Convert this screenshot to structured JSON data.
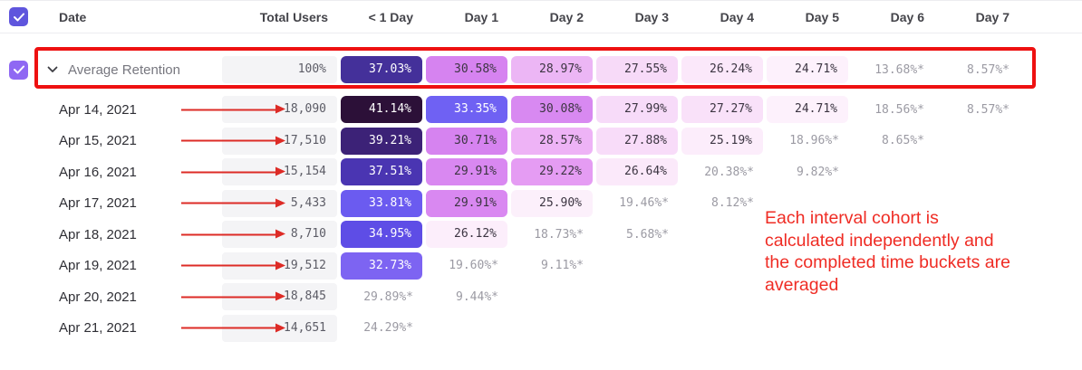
{
  "table": {
    "columns": {
      "date": "Date",
      "total": "Total Users",
      "days": [
        "< 1 Day",
        "Day 1",
        "Day 2",
        "Day 3",
        "Day 4",
        "Day 5",
        "Day 6",
        "Day 7"
      ]
    },
    "rows": [
      {
        "label": "Average Retention",
        "type": "average",
        "checked": true,
        "total": "100%",
        "cells": [
          {
            "text": "37.03%",
            "bg": "#44309a",
            "fg": "#ffffff"
          },
          {
            "text": "30.58%",
            "bg": "#d683f0",
            "fg": "#3c3542"
          },
          {
            "text": "28.97%",
            "bg": "#ecb6f5",
            "fg": "#3c3542"
          },
          {
            "text": "27.55%",
            "bg": "#f7daf8",
            "fg": "#3c3542"
          },
          {
            "text": "26.24%",
            "bg": "#fbe8fa",
            "fg": "#3c3542"
          },
          {
            "text": "24.71%",
            "bg": "#fdf1fc",
            "fg": "#3c3542"
          },
          {
            "text": "13.68%*",
            "bg": null,
            "fg": "#9b9aa3"
          },
          {
            "text": "8.57%*",
            "bg": null,
            "fg": "#9b9aa3"
          }
        ]
      },
      {
        "label": "Apr 14, 2021",
        "type": "date",
        "total": "18,090",
        "cells": [
          {
            "text": "41.14%",
            "bg": "#2c1038",
            "fg": "#ffffff"
          },
          {
            "text": "33.35%",
            "bg": "#6f61f3",
            "fg": "#ffffff"
          },
          {
            "text": "30.08%",
            "bg": "#d889f1",
            "fg": "#3c3542"
          },
          {
            "text": "27.99%",
            "bg": "#f7dbf9",
            "fg": "#3c3542"
          },
          {
            "text": "27.27%",
            "bg": "#f9e1f9",
            "fg": "#3c3542"
          },
          {
            "text": "24.71%",
            "bg": "#fdf1fc",
            "fg": "#3c3542"
          },
          {
            "text": "18.56%*",
            "bg": null,
            "fg": "#9b9aa3"
          },
          {
            "text": "8.57%*",
            "bg": null,
            "fg": "#9b9aa3"
          }
        ]
      },
      {
        "label": "Apr 15, 2021",
        "type": "date",
        "total": "17,510",
        "cells": [
          {
            "text": "39.21%",
            "bg": "#3c2277",
            "fg": "#ffffff"
          },
          {
            "text": "30.71%",
            "bg": "#d683f0",
            "fg": "#3c3542"
          },
          {
            "text": "28.57%",
            "bg": "#eeb3f6",
            "fg": "#3c3542"
          },
          {
            "text": "27.88%",
            "bg": "#f8dcf9",
            "fg": "#3c3542"
          },
          {
            "text": "25.19%",
            "bg": "#fcedfb",
            "fg": "#3c3542"
          },
          {
            "text": "18.96%*",
            "bg": null,
            "fg": "#9b9aa3"
          },
          {
            "text": "8.65%*",
            "bg": null,
            "fg": "#9b9aa3"
          },
          null
        ]
      },
      {
        "label": "Apr 16, 2021",
        "type": "date",
        "total": "15,154",
        "cells": [
          {
            "text": "37.51%",
            "bg": "#4a35b2",
            "fg": "#ffffff"
          },
          {
            "text": "29.91%",
            "bg": "#d988f1",
            "fg": "#3c3542"
          },
          {
            "text": "29.22%",
            "bg": "#e59cf3",
            "fg": "#3c3542"
          },
          {
            "text": "26.64%",
            "bg": "#fbe9fa",
            "fg": "#3c3542"
          },
          {
            "text": "20.38%*",
            "bg": null,
            "fg": "#9b9aa3"
          },
          {
            "text": "9.82%*",
            "bg": null,
            "fg": "#9b9aa3"
          },
          null,
          null
        ]
      },
      {
        "label": "Apr 17, 2021",
        "type": "date",
        "total": "5,433",
        "cells": [
          {
            "text": "33.81%",
            "bg": "#6b5bf0",
            "fg": "#ffffff"
          },
          {
            "text": "29.91%",
            "bg": "#d988f1",
            "fg": "#3c3542"
          },
          {
            "text": "25.90%",
            "bg": "#fcf0fb",
            "fg": "#3c3542"
          },
          {
            "text": "19.46%*",
            "bg": null,
            "fg": "#9b9aa3"
          },
          {
            "text": "8.12%*",
            "bg": null,
            "fg": "#9b9aa3"
          },
          null,
          null,
          null
        ]
      },
      {
        "label": "Apr 18, 2021",
        "type": "date",
        "total": "8,710",
        "cells": [
          {
            "text": "34.95%",
            "bg": "#5e4de6",
            "fg": "#ffffff"
          },
          {
            "text": "26.12%",
            "bg": "#fceefb",
            "fg": "#3c3542"
          },
          {
            "text": "18.73%*",
            "bg": null,
            "fg": "#9b9aa3"
          },
          {
            "text": "5.68%*",
            "bg": null,
            "fg": "#9b9aa3"
          },
          null,
          null,
          null,
          null
        ]
      },
      {
        "label": "Apr 19, 2021",
        "type": "date",
        "total": "19,512",
        "cells": [
          {
            "text": "32.73%",
            "bg": "#7d64f2",
            "fg": "#ffffff"
          },
          {
            "text": "19.60%*",
            "bg": null,
            "fg": "#9b9aa3"
          },
          {
            "text": "9.11%*",
            "bg": null,
            "fg": "#9b9aa3"
          },
          null,
          null,
          null,
          null,
          null
        ]
      },
      {
        "label": "Apr 20, 2021",
        "type": "date",
        "total": "18,845",
        "cells": [
          {
            "text": "29.89%*",
            "bg": null,
            "fg": "#9b9aa3"
          },
          {
            "text": "9.44%*",
            "bg": null,
            "fg": "#9b9aa3"
          },
          null,
          null,
          null,
          null,
          null,
          null
        ]
      },
      {
        "label": "Apr 21, 2021",
        "type": "date",
        "total": "14,651",
        "cells": [
          {
            "text": "24.29%*",
            "bg": null,
            "fg": "#9b9aa3"
          },
          null,
          null,
          null,
          null,
          null,
          null,
          null
        ]
      }
    ]
  },
  "annotation": {
    "text": "Each interval cohort is calculated independently and the completed time buckets are averaged",
    "lines": [
      "Each interval cohort is",
      "calculated independently and",
      "the completed time buckets are",
      "averaged"
    ],
    "color": "#ef2c24"
  },
  "colors": {
    "header_checkbox": "#5f55dd",
    "row_checkbox": "#8f68f3",
    "highlight_border": "#ee1111",
    "arrow": "#dd2b26"
  }
}
